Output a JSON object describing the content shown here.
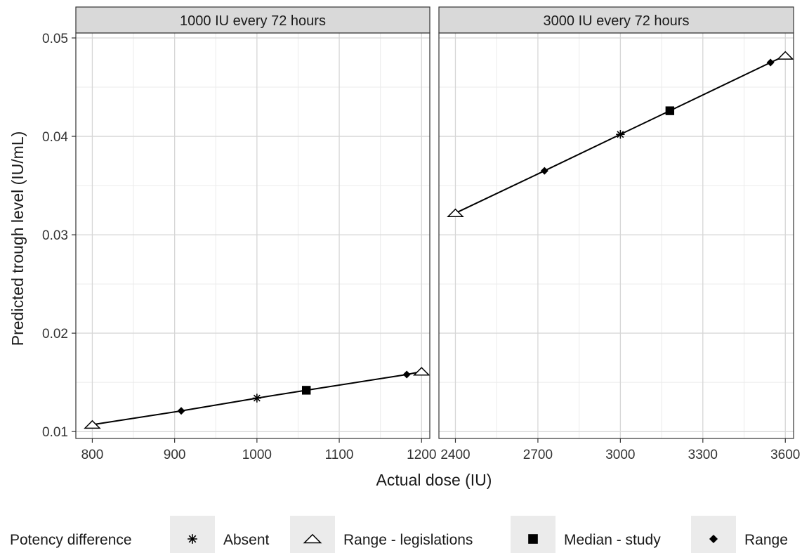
{
  "chart_data": {
    "type": "line",
    "xlabel": "Actual dose (IU)",
    "ylabel": "Predicted trough level (IU/mL)",
    "ylim": [
      0.0093,
      0.0505
    ],
    "y_ticks": [
      0.01,
      0.02,
      0.03,
      0.04,
      0.05
    ],
    "y_tick_labels": [
      "0.01",
      "0.02",
      "0.03",
      "0.04",
      "0.05"
    ],
    "grid": true,
    "legend_placement": "bottom",
    "legend": {
      "title": "Potency difference",
      "entries": [
        {
          "label": "Absent",
          "shape": "asterisk"
        },
        {
          "label": "Range - legislations",
          "shape": "open-triangle"
        },
        {
          "label": "Median - study",
          "shape": "filled-square"
        },
        {
          "label": "Range",
          "shape": "filled-diamond"
        }
      ]
    },
    "panels": [
      {
        "title": "1000 IU every 72 hours",
        "xlim": [
          780,
          1210
        ],
        "x_ticks": [
          800,
          900,
          1000,
          1100,
          1200
        ],
        "x_tick_labels": [
          "800",
          "900",
          "1000",
          "1100",
          "1200"
        ],
        "points": [
          {
            "x": 800,
            "y": 0.0107,
            "shape": "open-triangle"
          },
          {
            "x": 908,
            "y": 0.0121,
            "shape": "filled-diamond"
          },
          {
            "x": 1000,
            "y": 0.0134,
            "shape": "asterisk"
          },
          {
            "x": 1060,
            "y": 0.0142,
            "shape": "filled-square"
          },
          {
            "x": 1182,
            "y": 0.0158,
            "shape": "filled-diamond"
          },
          {
            "x": 1200,
            "y": 0.0161,
            "shape": "open-triangle"
          }
        ]
      },
      {
        "title": "3000 IU every 72 hours",
        "xlim": [
          2340,
          3630
        ],
        "x_ticks": [
          2400,
          2700,
          3000,
          3300,
          3600
        ],
        "x_tick_labels": [
          "2400",
          "2700",
          "3000",
          "3300",
          "3600"
        ],
        "points": [
          {
            "x": 2400,
            "y": 0.0322,
            "shape": "open-triangle"
          },
          {
            "x": 2724,
            "y": 0.0365,
            "shape": "filled-diamond"
          },
          {
            "x": 3000,
            "y": 0.0402,
            "shape": "asterisk"
          },
          {
            "x": 3180,
            "y": 0.0426,
            "shape": "filled-square"
          },
          {
            "x": 3546,
            "y": 0.0475,
            "shape": "filled-diamond"
          },
          {
            "x": 3600,
            "y": 0.0482,
            "shape": "open-triangle"
          }
        ]
      }
    ]
  }
}
